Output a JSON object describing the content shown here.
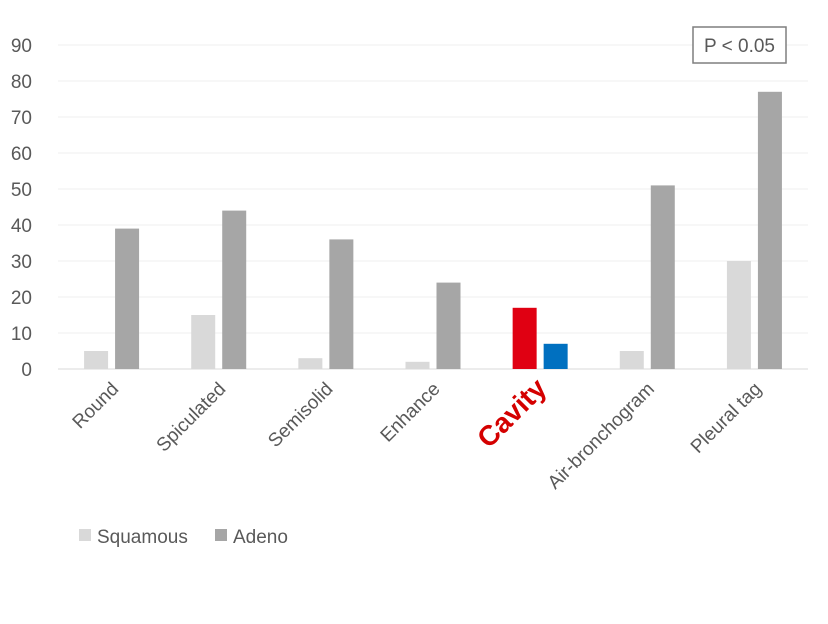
{
  "chart_data": {
    "type": "bar",
    "categories": [
      "Round",
      "Spiculated",
      "Semisolid",
      "Enhance",
      "Cavity",
      "Air-bronchogram",
      "Pleural tag"
    ],
    "highlight_category": "Cavity",
    "series": [
      {
        "name": "Squamous",
        "values": [
          5,
          15,
          3,
          2,
          17,
          5,
          30
        ],
        "color": "#d9d9d9"
      },
      {
        "name": "Adeno",
        "values": [
          39,
          44,
          36,
          24,
          7,
          51,
          77
        ],
        "color": "#a6a6a6"
      }
    ],
    "highlight_colors": {
      "Squamous": "#e00012",
      "Adeno": "#0070c0",
      "label": "#d40000"
    },
    "ylim": [
      0,
      90
    ],
    "yticks": [
      0,
      10,
      20,
      30,
      40,
      50,
      60,
      70,
      80,
      90
    ],
    "grid": true,
    "legend_position": "bottom-left",
    "annotation": "P < 0.05"
  }
}
